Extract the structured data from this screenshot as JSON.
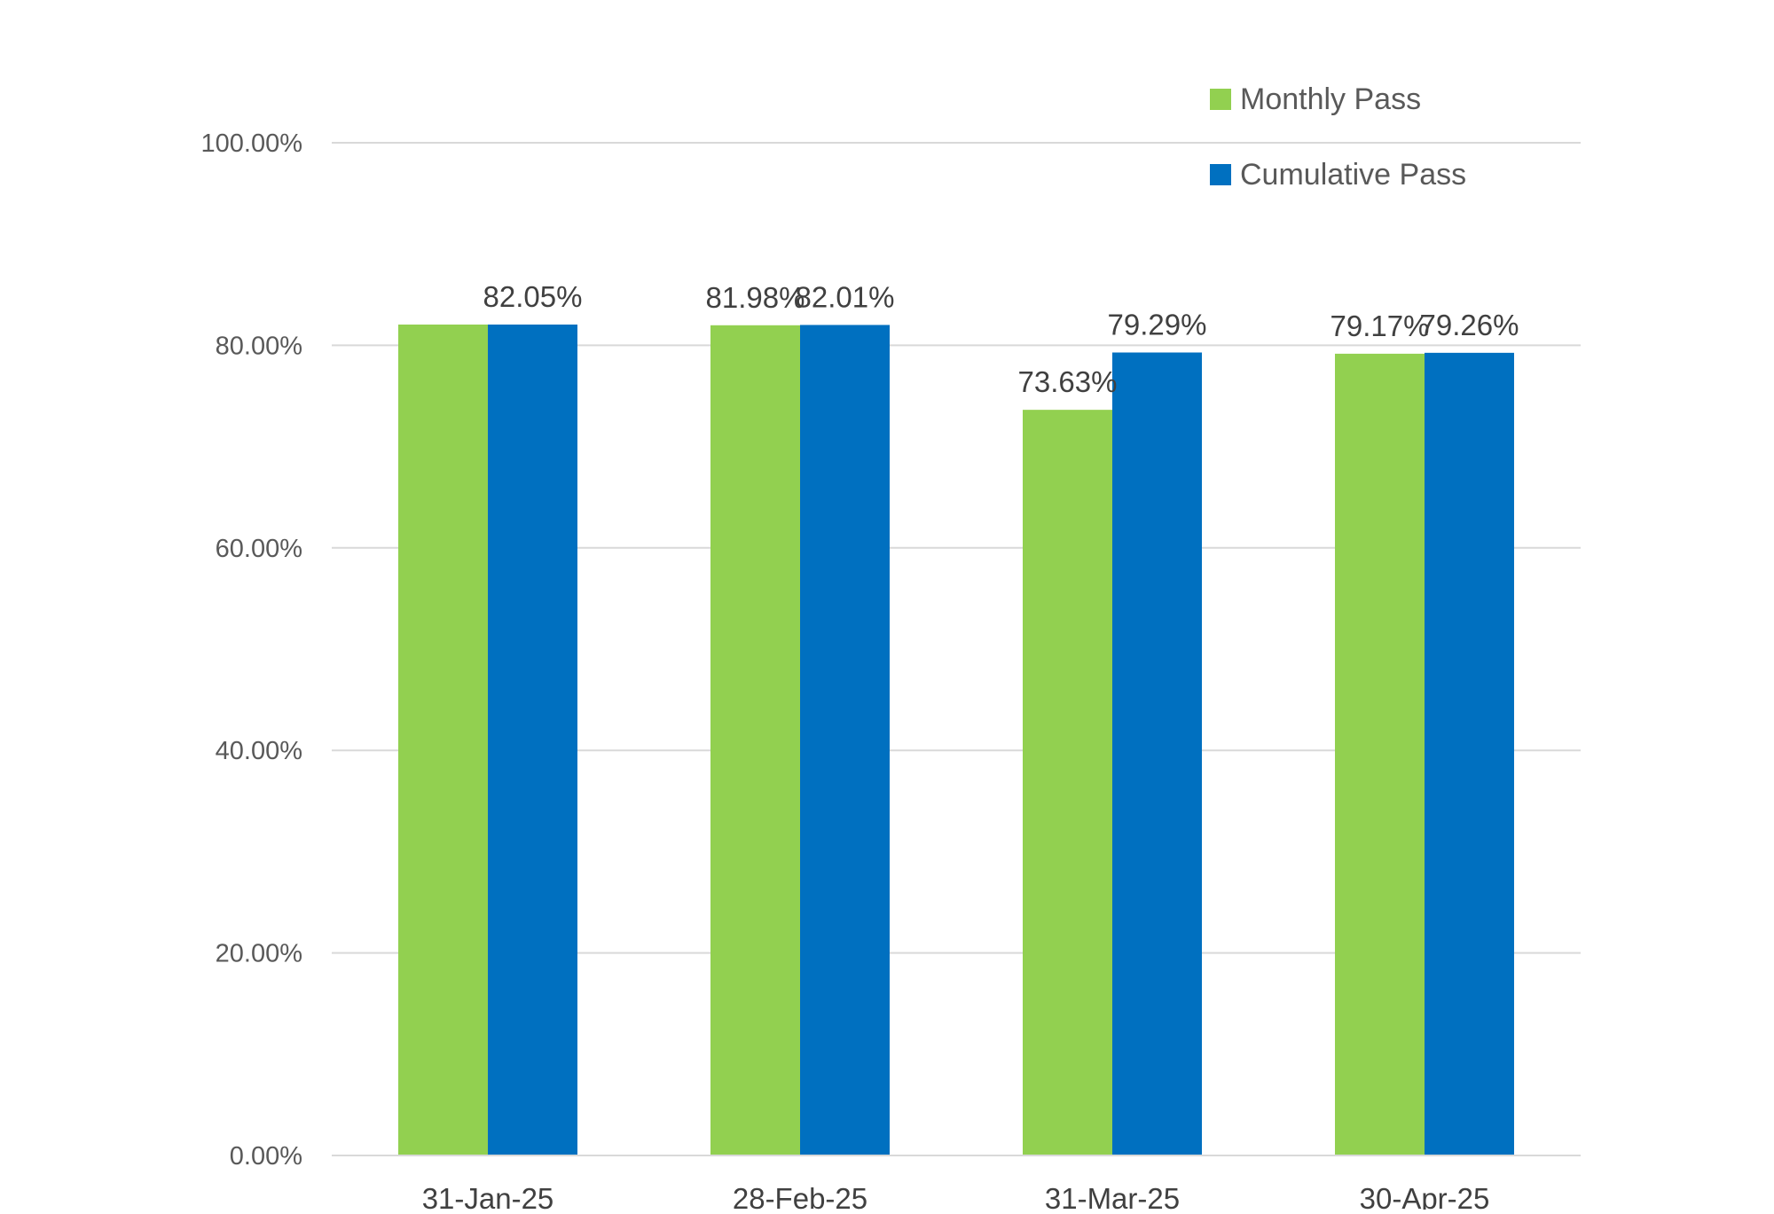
{
  "chart_data": {
    "type": "bar",
    "title": "",
    "xlabel": "",
    "ylabel": "",
    "categories": [
      "31-Jan-25",
      "28-Feb-25",
      "31-Mar-25",
      "30-Apr-25"
    ],
    "series": [
      {
        "name": "Monthly Pass",
        "color": "#92D050",
        "values": [
          82.05,
          81.98,
          73.63,
          79.17
        ],
        "labels": [
          "",
          "81.98%",
          "73.63%",
          "79.17%"
        ]
      },
      {
        "name": "Cumulative Pass",
        "color": "#0070C0",
        "values": [
          82.05,
          82.01,
          79.29,
          79.26
        ],
        "labels": [
          "82.05%",
          "82.01%",
          "79.29%",
          "79.26%"
        ]
      }
    ],
    "ylim": [
      0,
      100
    ],
    "yticks": [
      0,
      20,
      40,
      60,
      80,
      100
    ],
    "ytick_labels": [
      "0.00%",
      "20.00%",
      "40.00%",
      "60.00%",
      "80.00%",
      "100.00%"
    ],
    "grid": true,
    "legend_position": "top-right",
    "colors": {
      "gridline": "#D9D9D9",
      "axis": "#D9D9D9"
    }
  }
}
